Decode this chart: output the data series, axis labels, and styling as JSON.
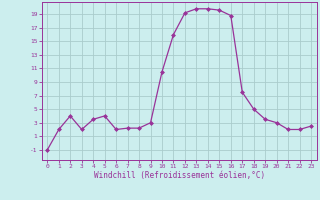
{
  "x": [
    0,
    1,
    2,
    3,
    4,
    5,
    6,
    7,
    8,
    9,
    10,
    11,
    12,
    13,
    14,
    15,
    16,
    17,
    18,
    19,
    20,
    21,
    22,
    23
  ],
  "y": [
    -1,
    2,
    4,
    2,
    3.5,
    4,
    2,
    2.2,
    2.2,
    3,
    10.5,
    16,
    19.2,
    19.8,
    19.8,
    19.6,
    18.8,
    7.5,
    5,
    3.5,
    3,
    2,
    2,
    2.5
  ],
  "line_color": "#993399",
  "marker_color": "#993399",
  "bg_color": "#cceeee",
  "grid_color": "#aacccc",
  "xlabel": "Windchill (Refroidissement éolien,°C)",
  "xlabel_color": "#993399",
  "ylabel_ticks": [
    -1,
    1,
    3,
    5,
    7,
    9,
    11,
    13,
    15,
    17,
    19
  ],
  "xlim": [
    -0.5,
    23.5
  ],
  "ylim": [
    -2.5,
    20.8
  ],
  "xticks": [
    0,
    1,
    2,
    3,
    4,
    5,
    6,
    7,
    8,
    9,
    10,
    11,
    12,
    13,
    14,
    15,
    16,
    17,
    18,
    19,
    20,
    21,
    22,
    23
  ]
}
